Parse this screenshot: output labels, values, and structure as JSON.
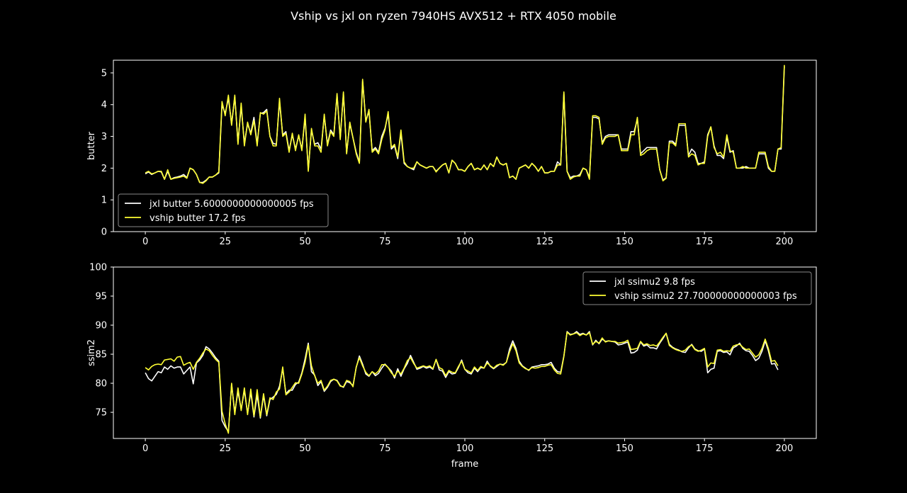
{
  "figure": {
    "title": "Vship vs jxl on ryzen 7940HS AVX512 + RTX 4050 mobile",
    "background": "#000000",
    "foreground": "#ffffff"
  },
  "chart_data": [
    {
      "type": "line",
      "xlabel": "",
      "ylabel": "butter",
      "xlim": [
        -10,
        210
      ],
      "ylim": [
        0,
        5.4
      ],
      "xticks": [
        0,
        25,
        50,
        75,
        100,
        125,
        150,
        175,
        200
      ],
      "yticks": [
        0,
        1,
        2,
        3,
        4,
        5
      ],
      "grid": false,
      "legend_position": "lower-left",
      "x": "frames 0-199",
      "series": [
        {
          "name": "jxl butter 5.6000000000000005 fps",
          "color": "#ffffff",
          "values": [
            1.82,
            1.88,
            1.8,
            1.85,
            1.9,
            1.88,
            1.65,
            1.9,
            1.65,
            1.7,
            1.72,
            1.75,
            1.8,
            1.7,
            2.0,
            1.95,
            1.8,
            1.55,
            1.55,
            1.62,
            1.72,
            1.72,
            1.78,
            1.85,
            4.0,
            3.72,
            4.2,
            3.4,
            4.25,
            2.8,
            3.95,
            2.78,
            3.4,
            3.1,
            3.6,
            2.75,
            3.72,
            3.75,
            3.85,
            3.0,
            2.78,
            2.75,
            4.1,
            3.05,
            3.15,
            2.55,
            3.05,
            2.6,
            3.02,
            2.6,
            3.6,
            1.95,
            3.2,
            2.75,
            2.8,
            2.6,
            3.65,
            2.75,
            3.2,
            3.05,
            4.3,
            2.95,
            4.35,
            2.48,
            3.4,
            2.95,
            2.5,
            2.18,
            4.75,
            3.5,
            3.78,
            2.55,
            2.65,
            2.5,
            3.0,
            3.25,
            3.7,
            2.6,
            2.7,
            2.3,
            3.1,
            2.15,
            2.05,
            2.0,
            1.95,
            2.2,
            2.1,
            2.05,
            2.0,
            2.05,
            2.05,
            1.9,
            2.0,
            2.1,
            2.15,
            1.85,
            2.25,
            2.15,
            1.95,
            1.95,
            1.9,
            2.05,
            2.15,
            1.95,
            2.0,
            1.95,
            2.1,
            1.95,
            2.15,
            2.05,
            2.35,
            2.15,
            2.1,
            2.15,
            1.7,
            1.75,
            1.65,
            2.0,
            2.05,
            2.1,
            2.0,
            2.15,
            2.05,
            1.9,
            2.05,
            1.85,
            1.85,
            1.9,
            1.9,
            2.2,
            2.1,
            4.35,
            1.9,
            1.7,
            1.75,
            1.75,
            1.8,
            2.0,
            1.95,
            1.7,
            3.6,
            3.6,
            3.55,
            2.8,
            3.0,
            3.05,
            3.05,
            3.05,
            3.05,
            2.6,
            2.6,
            2.6,
            3.15,
            3.15,
            3.55,
            2.45,
            2.55,
            2.65,
            2.65,
            2.65,
            2.65,
            1.95,
            1.62,
            1.7,
            2.85,
            2.85,
            2.75,
            3.35,
            3.35,
            3.35,
            2.4,
            2.6,
            2.5,
            2.15,
            2.15,
            2.2,
            3.05,
            3.3,
            2.7,
            2.4,
            2.4,
            2.3,
            2.98,
            2.5,
            2.55,
            2.0,
            2.0,
            2.0,
            2.05,
            2.0,
            2.0,
            2.0,
            2.45,
            2.45,
            2.45,
            2.0,
            1.9,
            1.9,
            2.6,
            2.6,
            5.2
          ]
        },
        {
          "name": "vship butter 17.2 fps",
          "color": "#ffff33",
          "values": [
            1.85,
            1.9,
            1.82,
            1.85,
            1.9,
            1.9,
            1.65,
            1.95,
            1.65,
            1.68,
            1.7,
            1.72,
            1.75,
            1.68,
            2.0,
            1.95,
            1.8,
            1.55,
            1.52,
            1.6,
            1.72,
            1.72,
            1.78,
            1.88,
            4.1,
            3.65,
            4.3,
            3.35,
            4.3,
            2.75,
            4.05,
            2.7,
            3.45,
            3.05,
            3.5,
            2.7,
            3.75,
            3.7,
            3.8,
            3.0,
            2.7,
            2.7,
            4.2,
            3.0,
            3.1,
            2.5,
            3.1,
            2.55,
            3.05,
            2.55,
            3.7,
            1.9,
            3.25,
            2.7,
            2.7,
            2.5,
            3.7,
            2.7,
            3.15,
            3.0,
            4.35,
            2.9,
            4.4,
            2.45,
            3.45,
            2.95,
            2.45,
            2.15,
            4.8,
            3.45,
            3.85,
            2.5,
            2.6,
            2.45,
            2.9,
            3.2,
            3.78,
            2.65,
            2.75,
            2.35,
            3.2,
            2.2,
            2.05,
            2.0,
            2.0,
            2.2,
            2.1,
            2.05,
            2.0,
            2.05,
            2.05,
            1.88,
            2.0,
            2.1,
            2.15,
            1.85,
            2.25,
            2.15,
            1.95,
            1.95,
            1.9,
            2.05,
            2.15,
            1.95,
            2.0,
            1.95,
            2.1,
            1.95,
            2.15,
            2.05,
            2.35,
            2.15,
            2.1,
            2.15,
            1.7,
            1.75,
            1.65,
            2.0,
            2.05,
            2.1,
            2.0,
            2.15,
            2.05,
            1.9,
            2.05,
            1.85,
            1.85,
            1.9,
            1.9,
            2.1,
            2.1,
            4.4,
            1.9,
            1.65,
            1.72,
            1.75,
            1.75,
            2.0,
            1.95,
            1.65,
            3.65,
            3.65,
            3.6,
            2.75,
            2.95,
            3.0,
            3.0,
            3.0,
            3.05,
            2.55,
            2.55,
            2.55,
            3.05,
            3.05,
            3.6,
            2.4,
            2.45,
            2.55,
            2.6,
            2.6,
            2.6,
            1.95,
            1.6,
            1.68,
            2.8,
            2.8,
            2.7,
            3.4,
            3.4,
            3.4,
            2.35,
            2.45,
            2.4,
            2.1,
            2.15,
            2.15,
            3.0,
            3.3,
            2.65,
            2.45,
            2.5,
            2.35,
            3.05,
            2.55,
            2.5,
            2.0,
            2.0,
            2.05,
            2.0,
            2.0,
            2.0,
            2.0,
            2.5,
            2.5,
            2.5,
            2.05,
            1.9,
            1.9,
            2.6,
            2.65,
            5.25
          ]
        }
      ]
    },
    {
      "type": "line",
      "xlabel": "frame",
      "ylabel": "ssim2",
      "xlim": [
        -10,
        210
      ],
      "ylim": [
        70.5,
        100
      ],
      "xticks": [
        0,
        25,
        50,
        75,
        100,
        125,
        150,
        175,
        200
      ],
      "yticks": [
        75,
        80,
        85,
        90,
        95,
        100
      ],
      "grid": false,
      "legend_position": "upper-right",
      "x": "frames 0-199",
      "series": [
        {
          "name": "jxl ssimu2 9.8 fps",
          "color": "#ffffff",
          "values": [
            81.8,
            80.8,
            80.4,
            81.2,
            82.0,
            81.8,
            82.8,
            82.4,
            83.0,
            82.6,
            82.8,
            82.8,
            81.6,
            82.2,
            82.8,
            79.9,
            83.5,
            84.0,
            84.8,
            86.3,
            85.9,
            85.2,
            84.4,
            83.8,
            73.6,
            72.5,
            71.7,
            79.8,
            75.0,
            78.6,
            75.5,
            78.8,
            74.8,
            78.5,
            74.2,
            78.0,
            74.0,
            77.9,
            74.4,
            77.2,
            77.6,
            78.1,
            79.5,
            82.5,
            78.2,
            78.8,
            78.8,
            79.8,
            80.2,
            81.8,
            84.2,
            86.9,
            82.0,
            81.4,
            79.6,
            80.3,
            78.6,
            79.3,
            80.3,
            80.7,
            80.5,
            79.6,
            79.3,
            80.3,
            80.1,
            79.6,
            82.7,
            84.7,
            83.3,
            81.6,
            81.2,
            82.0,
            81.3,
            81.7,
            82.6,
            83.3,
            82.7,
            82.1,
            80.9,
            82.5,
            81.2,
            82.5,
            83.4,
            84.8,
            83.6,
            82.4,
            82.6,
            82.9,
            82.6,
            82.8,
            82.4,
            84.1,
            82.3,
            82.1,
            81.0,
            82.0,
            81.6,
            81.7,
            82.7,
            84.0,
            82.4,
            81.8,
            81.6,
            82.6,
            82.0,
            82.7,
            82.6,
            83.8,
            82.9,
            82.5,
            82.9,
            83.3,
            83.2,
            83.6,
            85.9,
            87.3,
            86.0,
            83.8,
            83.0,
            82.6,
            82.2,
            82.8,
            82.9,
            83.0,
            83.2,
            83.2,
            83.3,
            83.6,
            82.6,
            82.0,
            81.9,
            84.7,
            88.9,
            88.4,
            88.5,
            88.9,
            88.4,
            88.6,
            88.3,
            88.9,
            86.6,
            87.4,
            86.8,
            87.6,
            87.2,
            87.3,
            87.2,
            87.1,
            86.6,
            86.7,
            86.9,
            87.1,
            85.2,
            85.3,
            85.7,
            87.1,
            86.4,
            86.6,
            86.1,
            86.1,
            85.9,
            86.9,
            87.7,
            88.6,
            86.7,
            86.2,
            85.9,
            85.7,
            85.4,
            85.3,
            86.1,
            86.7,
            85.9,
            85.6,
            85.5,
            85.9,
            81.8,
            82.4,
            82.6,
            85.5,
            85.6,
            85.3,
            85.4,
            84.9,
            86.1,
            86.4,
            86.9,
            86.0,
            85.6,
            85.5,
            84.8,
            83.9,
            84.3,
            85.5,
            87.3,
            85.6,
            83.3,
            83.4,
            82.3
          ]
        },
        {
          "name": "vship ssimu2 27.700000000000003 fps",
          "color": "#ffff33",
          "values": [
            82.7,
            82.3,
            82.9,
            83.2,
            83.3,
            83.2,
            84.0,
            84.1,
            84.2,
            83.8,
            84.5,
            84.6,
            83.1,
            83.4,
            83.6,
            82.4,
            83.6,
            84.3,
            85.2,
            85.9,
            85.6,
            84.8,
            84.1,
            83.6,
            75.2,
            73.0,
            71.4,
            80.0,
            74.6,
            79.2,
            75.3,
            79.2,
            74.6,
            79.0,
            74.4,
            78.9,
            74.2,
            78.2,
            74.6,
            77.5,
            77.2,
            78.5,
            79.0,
            82.8,
            78.0,
            78.5,
            79.3,
            80.1,
            80.0,
            81.6,
            83.6,
            86.6,
            83.0,
            81.3,
            80.0,
            80.5,
            78.8,
            79.5,
            80.5,
            80.7,
            80.4,
            79.5,
            79.4,
            80.5,
            80.3,
            79.4,
            82.8,
            84.4,
            83.0,
            81.9,
            81.3,
            82.0,
            81.6,
            82.1,
            83.2,
            83.2,
            82.7,
            81.8,
            81.2,
            82.1,
            81.6,
            82.6,
            83.9,
            84.4,
            83.4,
            82.6,
            82.8,
            83.0,
            82.8,
            83.0,
            82.5,
            84.1,
            82.7,
            82.4,
            81.3,
            82.2,
            81.9,
            81.8,
            82.9,
            83.8,
            82.4,
            82.1,
            81.8,
            82.8,
            82.2,
            82.9,
            82.6,
            83.5,
            83.0,
            82.6,
            83.1,
            83.3,
            83.1,
            83.6,
            85.4,
            86.8,
            85.6,
            83.5,
            82.9,
            82.5,
            82.3,
            82.7,
            82.6,
            82.7,
            82.9,
            82.9,
            83.1,
            83.2,
            82.3,
            81.7,
            81.6,
            84.6,
            88.8,
            88.3,
            88.5,
            88.7,
            88.2,
            88.5,
            88.3,
            88.7,
            86.7,
            87.2,
            86.9,
            87.8,
            87.1,
            87.3,
            87.2,
            87.2,
            86.9,
            87.0,
            87.1,
            87.4,
            85.8,
            85.9,
            86.0,
            87.2,
            86.6,
            86.8,
            86.5,
            86.6,
            86.4,
            87.1,
            87.9,
            88.6,
            86.5,
            86.1,
            85.8,
            85.6,
            85.5,
            85.7,
            86.3,
            86.6,
            85.8,
            85.5,
            85.7,
            86.0,
            82.8,
            83.5,
            83.4,
            85.7,
            85.8,
            85.5,
            85.6,
            85.5,
            86.4,
            86.6,
            86.7,
            86.2,
            85.8,
            85.9,
            85.2,
            84.5,
            84.9,
            86.0,
            87.6,
            86.0,
            83.8,
            83.9,
            83.0
          ]
        }
      ]
    }
  ]
}
